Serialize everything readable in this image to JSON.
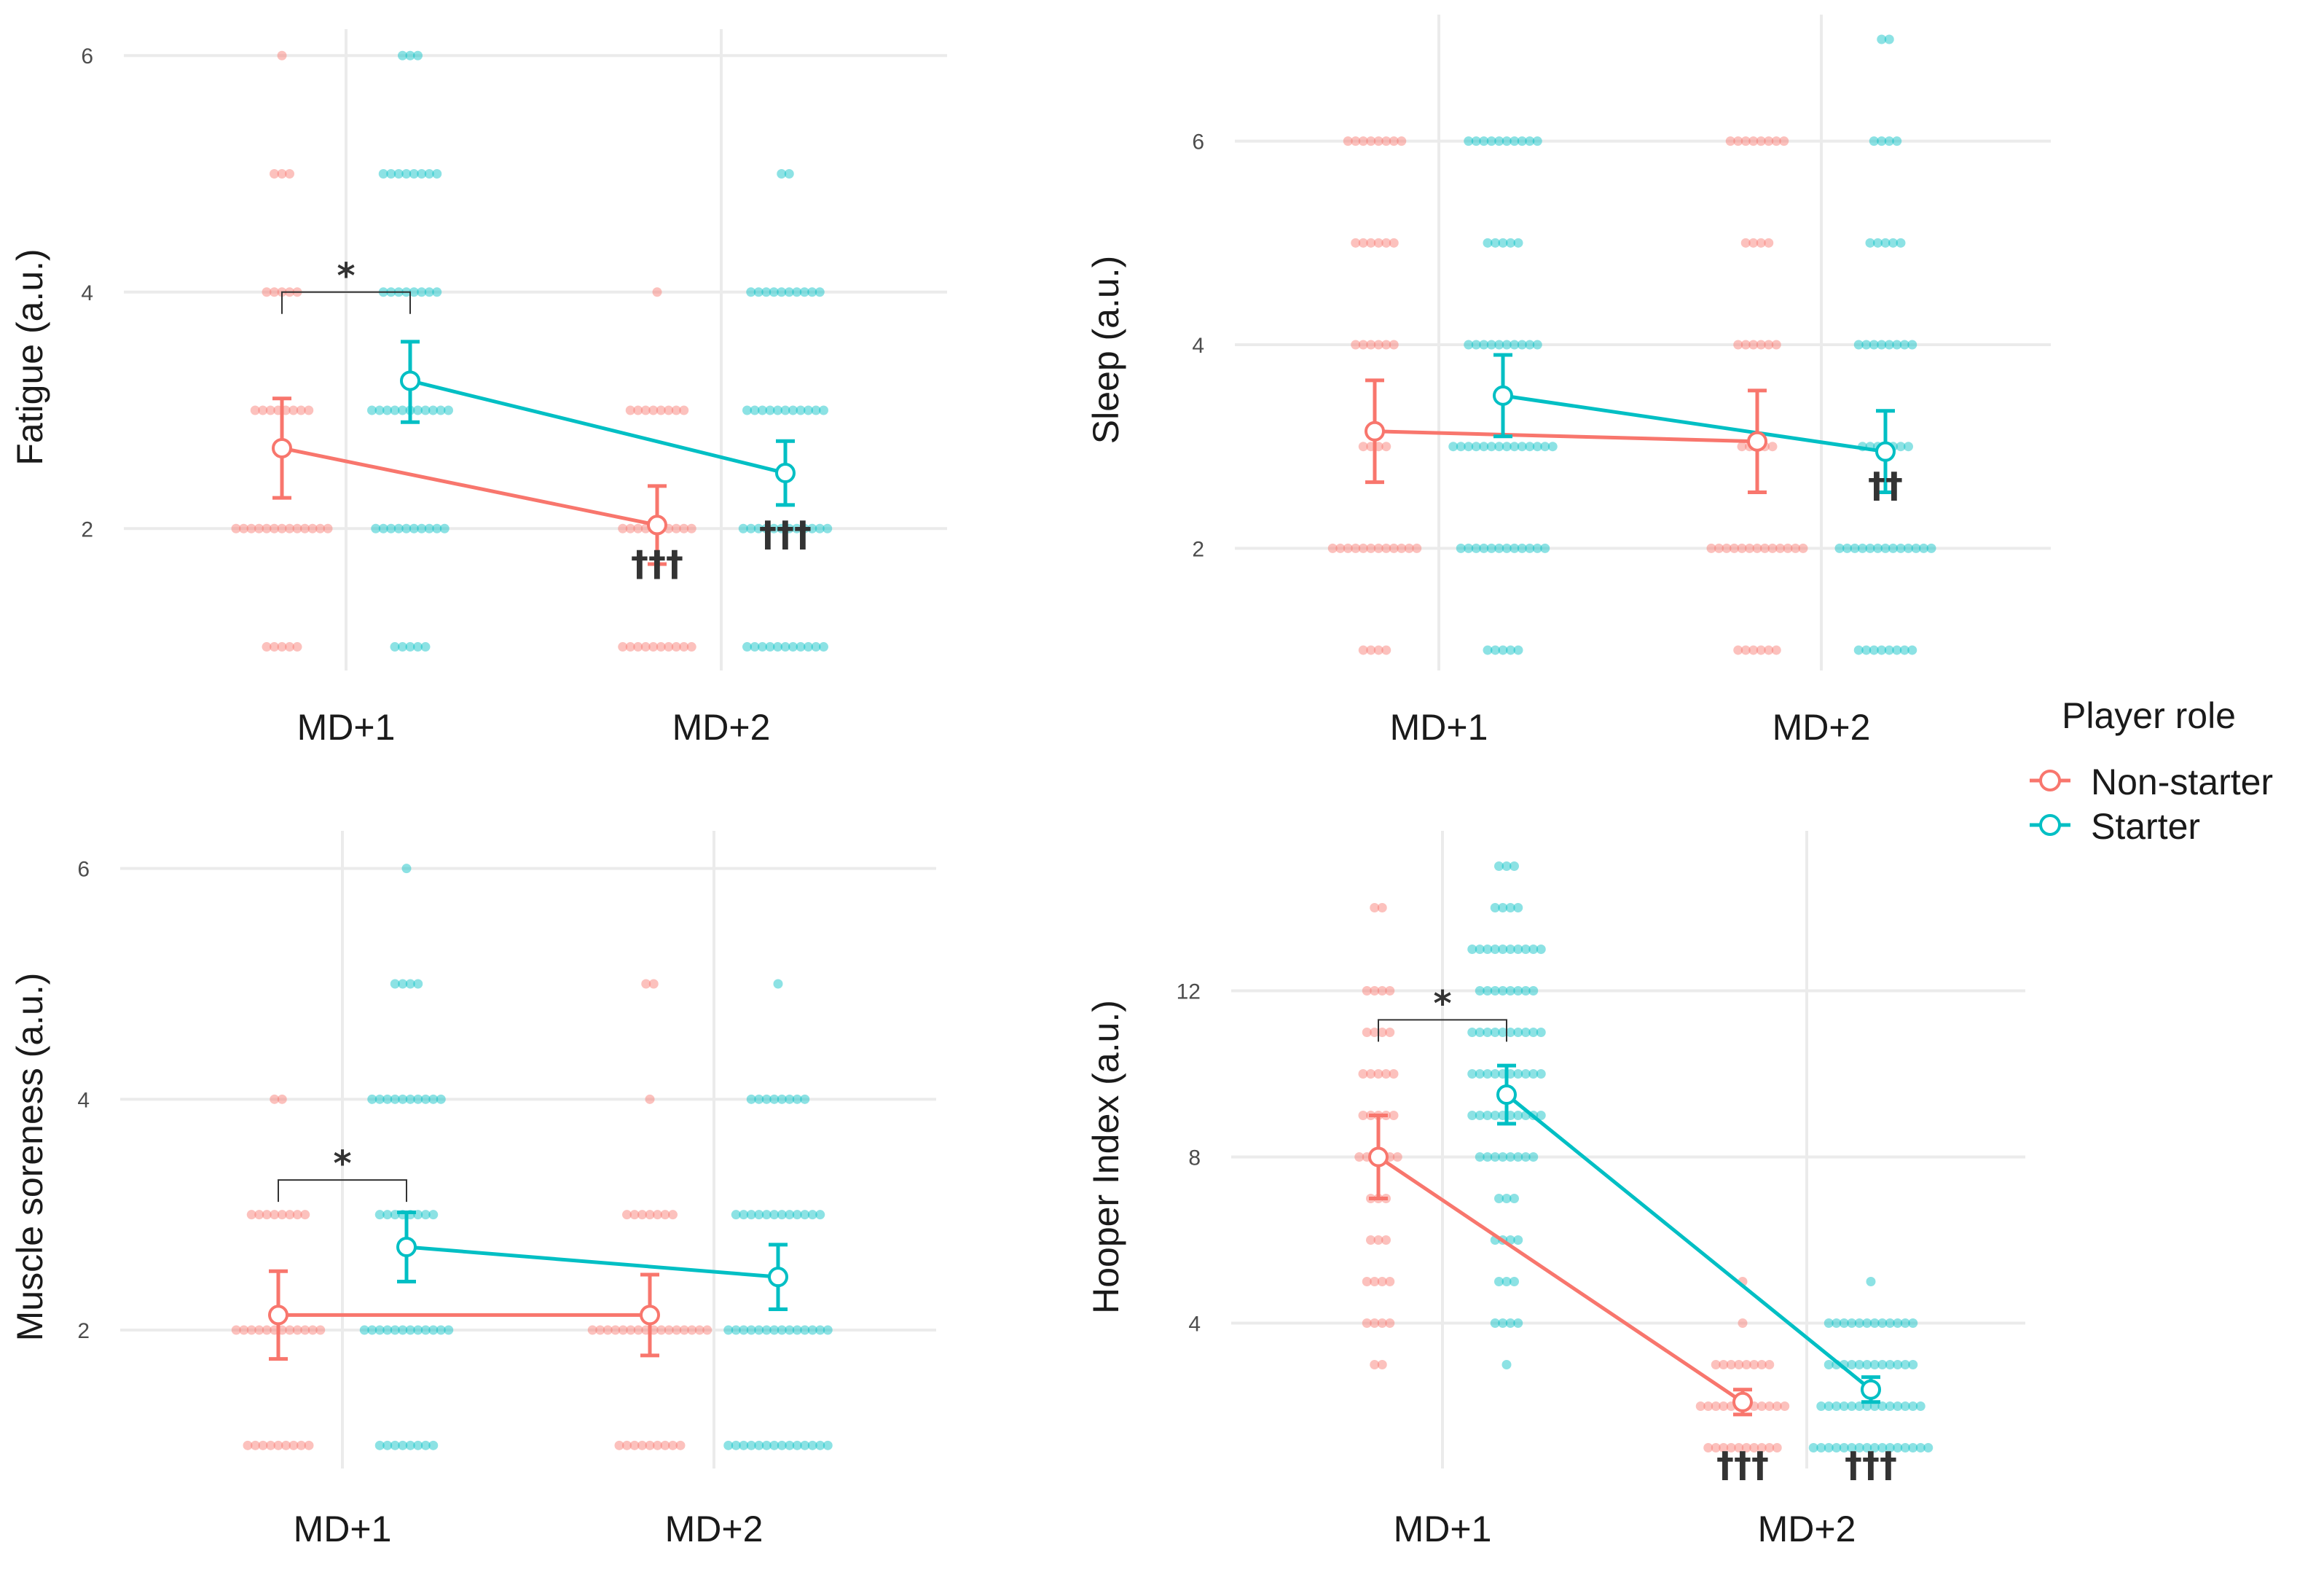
{
  "chart_data": [
    {
      "type": "scatter",
      "panel": "top-left",
      "ylabel": "Fatigue (a.u.)",
      "categories": [
        "MD+1",
        "MD+2"
      ],
      "ylim": [
        0.8,
        6.1
      ],
      "yticks": [
        2,
        4,
        6
      ],
      "ytick_labels": [
        "2",
        "4",
        "6"
      ],
      "series": [
        {
          "name": "Non-starter",
          "color": "#F8766D",
          "means": [
            2.68,
            2.03
          ],
          "ci_low": [
            2.26,
            1.7
          ],
          "ci_high": [
            3.1,
            2.36
          ],
          "points": [
            [
              [
                1,
                5
              ],
              [
                2,
                13
              ],
              [
                3,
                8
              ],
              [
                4,
                5
              ],
              [
                5,
                3
              ],
              [
                6,
                1
              ]
            ],
            [
              [
                1,
                10
              ],
              [
                2,
                10
              ],
              [
                3,
                8
              ],
              [
                4,
                1
              ]
            ]
          ]
        },
        {
          "name": "Starter",
          "color": "#00BFC4",
          "means": [
            3.25,
            2.47
          ],
          "ci_low": [
            2.9,
            2.2
          ],
          "ci_high": [
            3.58,
            2.74
          ],
          "points": [
            [
              [
                1,
                5
              ],
              [
                2,
                10
              ],
              [
                3,
                11
              ],
              [
                4,
                8
              ],
              [
                5,
                8
              ],
              [
                6,
                3
              ]
            ],
            [
              [
                1,
                11
              ],
              [
                2,
                12
              ],
              [
                3,
                11
              ],
              [
                4,
                10
              ],
              [
                5,
                2
              ]
            ]
          ]
        }
      ],
      "brackets": [
        {
          "from": 0,
          "to": 1,
          "category": "MD+1",
          "y": 4.0,
          "label": "*"
        }
      ],
      "annotations": [
        {
          "category": "MD+2",
          "series": "Non-starter",
          "y": 1.6,
          "label": "†††"
        },
        {
          "category": "MD+2",
          "series": "Starter",
          "y": 1.85,
          "label": "†††"
        }
      ]
    },
    {
      "type": "scatter",
      "panel": "top-right",
      "ylabel": "Sleep (a.u.)",
      "categories": [
        "MD+1",
        "MD+2"
      ],
      "ylim": [
        0.8,
        7.1
      ],
      "yticks": [
        2,
        4,
        6
      ],
      "ytick_labels": [
        "2",
        "4",
        "6"
      ],
      "series": [
        {
          "name": "Non-starter",
          "color": "#F8766D",
          "means": [
            3.15,
            3.05
          ],
          "ci_low": [
            2.65,
            2.55
          ],
          "ci_high": [
            3.65,
            3.55
          ],
          "points": [
            [
              [
                1,
                4
              ],
              [
                2,
                12
              ],
              [
                3,
                4
              ],
              [
                4,
                6
              ],
              [
                5,
                6
              ],
              [
                6,
                8
              ]
            ],
            [
              [
                1,
                6
              ],
              [
                2,
                13
              ],
              [
                3,
                5
              ],
              [
                4,
                6
              ],
              [
                5,
                4
              ],
              [
                6,
                8
              ]
            ]
          ]
        },
        {
          "name": "Starter",
          "color": "#00BFC4",
          "means": [
            3.5,
            2.95
          ],
          "ci_low": [
            3.1,
            2.55
          ],
          "ci_high": [
            3.9,
            3.35
          ],
          "points": [
            [
              [
                1,
                5
              ],
              [
                2,
                12
              ],
              [
                3,
                14
              ],
              [
                4,
                10
              ],
              [
                5,
                5
              ],
              [
                6,
                10
              ]
            ],
            [
              [
                1,
                8
              ],
              [
                2,
                13
              ],
              [
                3,
                7
              ],
              [
                4,
                8
              ],
              [
                5,
                5
              ],
              [
                6,
                4
              ],
              [
                7,
                2
              ]
            ]
          ]
        }
      ],
      "brackets": [],
      "annotations": [
        {
          "category": "MD+2",
          "series": "Starter",
          "y": 2.5,
          "label": "††"
        }
      ]
    },
    {
      "type": "scatter",
      "panel": "bottom-left",
      "ylabel": "Muscle soreness (a.u.)",
      "categories": [
        "MD+1",
        "MD+2"
      ],
      "ylim": [
        0.8,
        6.2
      ],
      "yticks": [
        2,
        4,
        6
      ],
      "ytick_labels": [
        "2",
        "4",
        "6"
      ],
      "series": [
        {
          "name": "Non-starter",
          "color": "#F8766D",
          "means": [
            2.13,
            2.13
          ],
          "ci_low": [
            1.75,
            1.78
          ],
          "ci_high": [
            2.51,
            2.48
          ],
          "points": [
            [
              [
                1,
                9
              ],
              [
                2,
                12
              ],
              [
                3,
                8
              ],
              [
                4,
                2
              ]
            ],
            [
              [
                1,
                9
              ],
              [
                2,
                16
              ],
              [
                3,
                7
              ],
              [
                4,
                1
              ],
              [
                5,
                2
              ]
            ]
          ]
        },
        {
          "name": "Starter",
          "color": "#00BFC4",
          "means": [
            2.72,
            2.46
          ],
          "ci_low": [
            2.42,
            2.18
          ],
          "ci_high": [
            3.02,
            2.74
          ],
          "points": [
            [
              [
                1,
                8
              ],
              [
                2,
                12
              ],
              [
                3,
                8
              ],
              [
                4,
                10
              ],
              [
                5,
                4
              ],
              [
                6,
                1
              ]
            ],
            [
              [
                1,
                14
              ],
              [
                2,
                14
              ],
              [
                3,
                12
              ],
              [
                4,
                8
              ],
              [
                5,
                1
              ]
            ]
          ]
        }
      ],
      "brackets": [
        {
          "from": 0,
          "to": 1,
          "category": "MD+1",
          "y": 3.3,
          "label": "*"
        }
      ],
      "annotations": []
    },
    {
      "type": "scatter",
      "panel": "bottom-right",
      "ylabel": "Hooper Index (a.u.)",
      "categories": [
        "MD+1",
        "MD+2"
      ],
      "ylim": [
        0.5,
        15.5
      ],
      "yticks": [
        4,
        8,
        12
      ],
      "ytick_labels": [
        "4",
        "8",
        "12"
      ],
      "series": [
        {
          "name": "Non-starter",
          "color": "#F8766D",
          "means": [
            8.0,
            2.1
          ],
          "ci_low": [
            7.0,
            1.8
          ],
          "ci_high": [
            9.0,
            2.4
          ],
          "points": [
            [
              [
                3,
                2
              ],
              [
                4,
                4
              ],
              [
                5,
                4
              ],
              [
                6,
                3
              ],
              [
                7,
                3
              ],
              [
                8,
                6
              ],
              [
                9,
                5
              ],
              [
                10,
                5
              ],
              [
                11,
                4
              ],
              [
                12,
                4
              ],
              [
                14,
                2
              ]
            ],
            [
              [
                1,
                10
              ],
              [
                2,
                12
              ],
              [
                3,
                8
              ],
              [
                4,
                1
              ],
              [
                5,
                1
              ]
            ]
          ]
        },
        {
          "name": "Starter",
          "color": "#00BFC4",
          "means": [
            9.5,
            2.4
          ],
          "ci_low": [
            8.8,
            2.1
          ],
          "ci_high": [
            10.2,
            2.7
          ],
          "points": [
            [
              [
                3,
                1
              ],
              [
                4,
                4
              ],
              [
                5,
                3
              ],
              [
                6,
                4
              ],
              [
                7,
                3
              ],
              [
                8,
                8
              ],
              [
                9,
                10
              ],
              [
                10,
                10
              ],
              [
                11,
                10
              ],
              [
                12,
                8
              ],
              [
                13,
                10
              ],
              [
                14,
                4
              ],
              [
                15,
                3
              ]
            ],
            [
              [
                1,
                16
              ],
              [
                2,
                14
              ],
              [
                3,
                12
              ],
              [
                4,
                12
              ],
              [
                5,
                1
              ]
            ]
          ]
        }
      ],
      "brackets": [
        {
          "from": 0,
          "to": 1,
          "category": "MD+1",
          "y": 11.3,
          "label": "*"
        }
      ],
      "annotations": [
        {
          "category": "MD+2",
          "series": "Non-starter",
          "y": 0.3,
          "label": "†††"
        },
        {
          "category": "MD+2",
          "series": "Starter",
          "y": 0.3,
          "label": "†††"
        }
      ]
    }
  ],
  "legend": {
    "title": "Player role",
    "items": [
      {
        "label": "Non-starter",
        "color": "#F8766D"
      },
      {
        "label": "Starter",
        "color": "#00BFC4"
      }
    ]
  }
}
